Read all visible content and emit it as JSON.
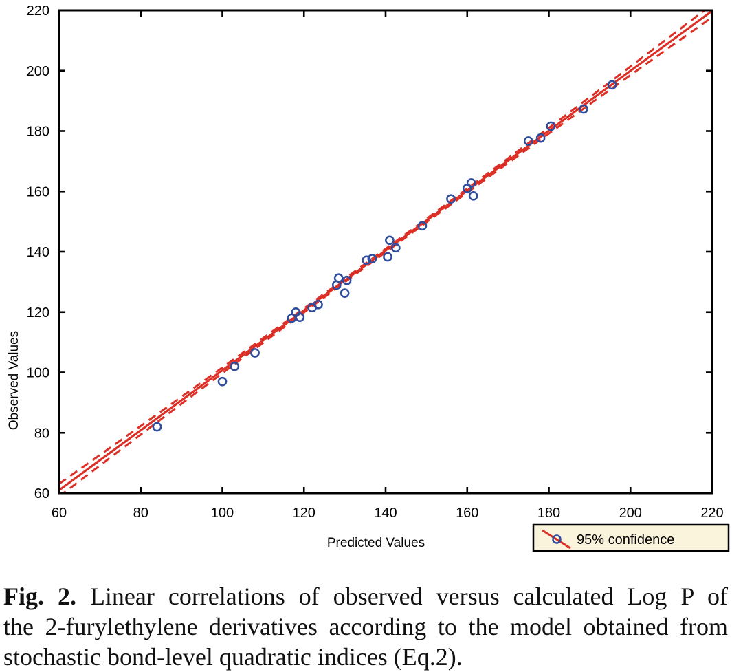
{
  "caption": {
    "label": "Fig. 2.",
    "line1": "Linear correlations of observed versus calculated Log P of",
    "line2": "the 2-furylethylene derivatives according to the model obtained from",
    "line3": "stochastic bond-level quadratic indices (Eq.2)."
  },
  "chart_data": {
    "type": "scatter",
    "title": "",
    "xlabel": "Predicted Values",
    "ylabel": "Observed Values",
    "xlim": [
      60,
      220
    ],
    "ylim": [
      60,
      220
    ],
    "x_ticks": [
      60,
      80,
      100,
      120,
      140,
      160,
      180,
      200,
      220
    ],
    "y_ticks": [
      60,
      80,
      100,
      120,
      140,
      160,
      180,
      200,
      220
    ],
    "grid": false,
    "points": [
      [
        84,
        82
      ],
      [
        100,
        97
      ],
      [
        103,
        102
      ],
      [
        108,
        106.5
      ],
      [
        117,
        118
      ],
      [
        118,
        120
      ],
      [
        119,
        118.3
      ],
      [
        122,
        121.5
      ],
      [
        123.5,
        122.5
      ],
      [
        128,
        129
      ],
      [
        128.5,
        131.3
      ],
      [
        130.5,
        130.5
      ],
      [
        130,
        126.3
      ],
      [
        135.3,
        137.2
      ],
      [
        136.7,
        137.7
      ],
      [
        140.5,
        138.3
      ],
      [
        141,
        143.8
      ],
      [
        142.5,
        141.3
      ],
      [
        149,
        148.6
      ],
      [
        156,
        157.5
      ],
      [
        160,
        161
      ],
      [
        161,
        162.8
      ],
      [
        161.5,
        158.5
      ],
      [
        175,
        176.7
      ],
      [
        178,
        177.7
      ],
      [
        180.5,
        181.6
      ],
      [
        188.5,
        187.3
      ],
      [
        195.5,
        195.3
      ]
    ],
    "regression_line": {
      "x": [
        60,
        220
      ],
      "y": [
        61.0,
        219.8
      ]
    },
    "confidence_band": {
      "offset_mid": 0.55,
      "offset_end": 2.1
    },
    "legend": {
      "label": "95% confidence",
      "position": "bottom-right"
    },
    "colors": {
      "line": "#DC3027",
      "marker": "#2E4D9E",
      "axis": "#000000",
      "legend_bg": "#FBF4DD"
    }
  }
}
